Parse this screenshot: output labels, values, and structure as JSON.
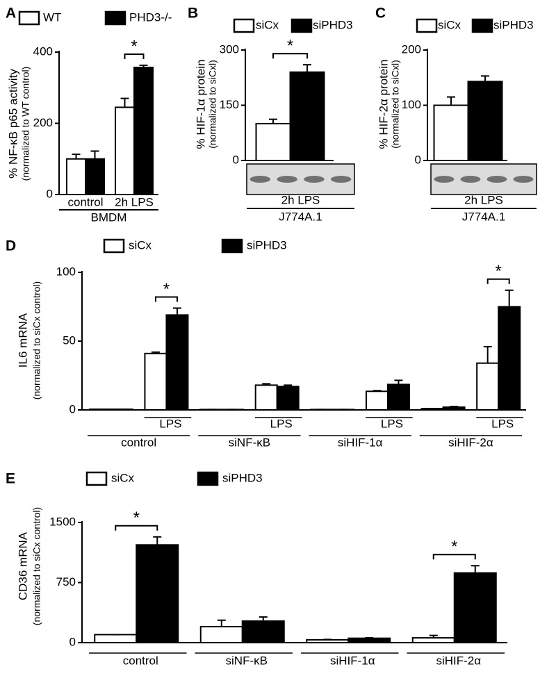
{
  "chart_data": [
    {
      "type": "bar",
      "panel_label": "A",
      "ylabel": [
        "% NF-κB p65 activity",
        "(normalized to WT control)"
      ],
      "categories": [
        "control",
        "2h LPS"
      ],
      "group_label": "BMDM",
      "series": [
        {
          "name": "WT",
          "color": "#ffffff",
          "values": [
            100,
            245
          ],
          "errors": [
            13,
            25
          ]
        },
        {
          "name": "PHD3-/-",
          "color": "#000000",
          "values": [
            100,
            357
          ],
          "errors": [
            22,
            6
          ]
        }
      ],
      "significance": [
        null,
        "*"
      ],
      "ylim": [
        0,
        400
      ],
      "yticks": [
        0,
        200,
        400
      ]
    },
    {
      "type": "bar",
      "panel_label": "B",
      "ylabel": [
        "% HIF-1α protein",
        "(normalized to siCxl)"
      ],
      "categories": [
        "2h LPS"
      ],
      "group_label": "J774A.1",
      "blot": true,
      "series": [
        {
          "name": "siCx",
          "color": "#ffffff",
          "values": [
            100
          ],
          "errors": [
            12
          ]
        },
        {
          "name": "siPHD3",
          "color": "#000000",
          "values": [
            240
          ],
          "errors": [
            20
          ]
        }
      ],
      "significance": [
        "*"
      ],
      "ylim": [
        0,
        300
      ],
      "yticks": [
        0,
        150,
        300
      ]
    },
    {
      "type": "bar",
      "panel_label": "C",
      "ylabel": [
        "% HIF-2α protein",
        "(normalized to siCxl)"
      ],
      "categories": [
        "2h LPS"
      ],
      "group_label": "J774A.1",
      "blot": true,
      "series": [
        {
          "name": "siCx",
          "color": "#ffffff",
          "values": [
            100
          ],
          "errors": [
            15
          ]
        },
        {
          "name": "siPHD3",
          "color": "#000000",
          "values": [
            143
          ],
          "errors": [
            10
          ]
        }
      ],
      "significance": [
        null
      ],
      "ylim": [
        0,
        200
      ],
      "yticks": [
        0,
        100,
        200
      ]
    },
    {
      "type": "bar",
      "panel_label": "D",
      "ylabel": [
        "IL6 mRNA",
        "(normalized to siCx control)"
      ],
      "categories": [
        null,
        "LPS",
        null,
        "LPS",
        null,
        "LPS",
        null,
        "LPS"
      ],
      "groups": [
        "control",
        "siNF-κB",
        "siHIF-1α",
        "siHIF-2α"
      ],
      "series": [
        {
          "name": "siCx",
          "color": "#ffffff",
          "values": [
            0.5,
            41,
            0.3,
            18,
            0.3,
            13.5,
            1,
            34
          ],
          "errors": [
            0,
            1,
            0,
            1,
            0,
            0.5,
            0,
            12
          ]
        },
        {
          "name": "siPHD3",
          "color": "#000000",
          "values": [
            0.5,
            69,
            0.3,
            17,
            0.3,
            18.5,
            2,
            75
          ],
          "errors": [
            0,
            5,
            0,
            1,
            0,
            3,
            0.5,
            12
          ]
        }
      ],
      "significance": [
        null,
        "*",
        null,
        null,
        null,
        null,
        null,
        "*"
      ],
      "ylim": [
        0,
        100
      ],
      "yticks": [
        0,
        50,
        100
      ]
    },
    {
      "type": "bar",
      "panel_label": "E",
      "ylabel": [
        "CD36 mRNA",
        "(normalized to siCx control)"
      ],
      "categories": [
        "control",
        "siNF-κB",
        "siHIF-1α",
        "siHIF-2α"
      ],
      "series": [
        {
          "name": "siCx",
          "color": "#ffffff",
          "values": [
            100,
            200,
            35,
            60
          ],
          "errors": [
            0,
            80,
            5,
            30
          ]
        },
        {
          "name": "siPHD3",
          "color": "#000000",
          "values": [
            1220,
            270,
            55,
            870
          ],
          "errors": [
            100,
            50,
            5,
            90
          ]
        }
      ],
      "significance": [
        "*",
        null,
        null,
        "*"
      ],
      "ylim": [
        0,
        1500
      ],
      "yticks": [
        0,
        750,
        1500
      ]
    }
  ]
}
